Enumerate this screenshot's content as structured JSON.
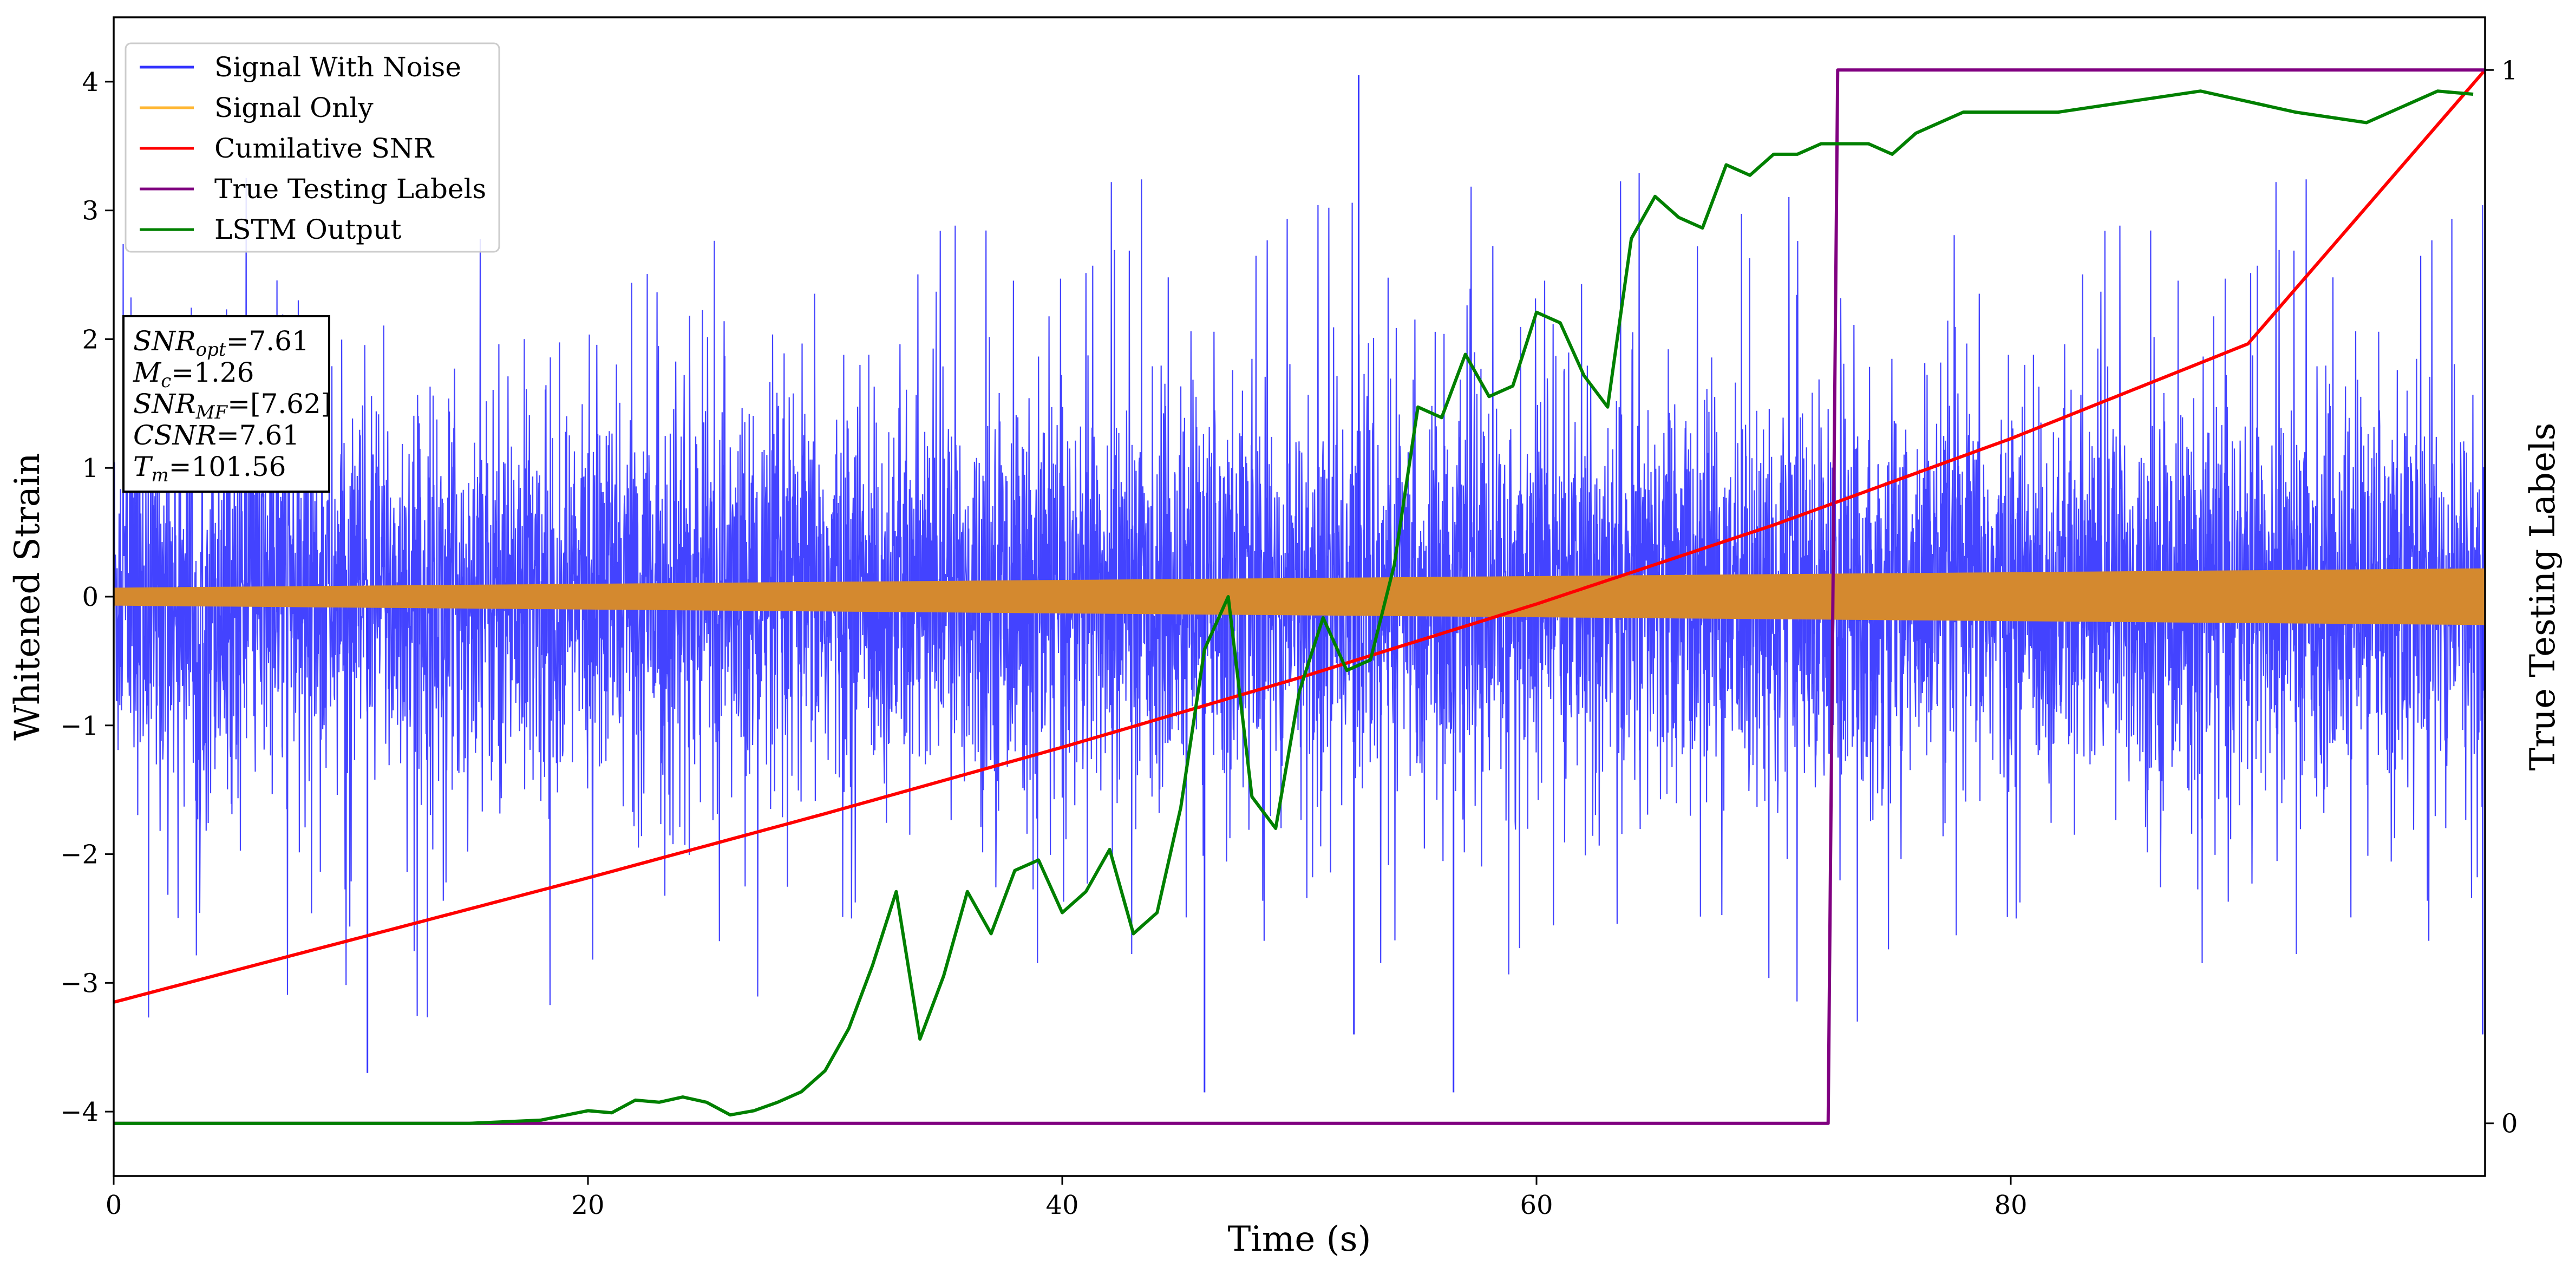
{
  "chart_data": {
    "type": "line",
    "xlabel": "Time (s)",
    "ylabel": "Whitened Strain",
    "y2label": "True Testing Labels",
    "xlim": [
      0,
      100
    ],
    "ylim": [
      -4.5,
      4.5
    ],
    "y2lim": [
      -0.05,
      1.05
    ],
    "x_ticks": [
      "0",
      "20",
      "40",
      "60",
      "80"
    ],
    "x_tick_values": [
      0,
      20,
      40,
      60,
      80
    ],
    "y_ticks": [
      "−4",
      "−3",
      "−2",
      "−1",
      "0",
      "1",
      "2",
      "3",
      "4"
    ],
    "y_tick_values": [
      -4,
      -3,
      -2,
      -1,
      0,
      1,
      2,
      3,
      4
    ],
    "y2_ticks": [
      "0",
      "1"
    ],
    "y2_tick_values": [
      0,
      1
    ],
    "grid": false,
    "legend_position": "top-left",
    "legend": [
      {
        "label": "Signal With Noise",
        "color": "#3333ff"
      },
      {
        "label": "Signal Only",
        "color": "#ffb733"
      },
      {
        "label": "Cumilative SNR",
        "color": "#ff0000"
      },
      {
        "label": "True Testing Labels",
        "color": "#800080"
      },
      {
        "label": "LSTM Output",
        "color": "#008000"
      }
    ],
    "info_box": [
      {
        "main": "SNR",
        "sub": "opt",
        "rest": "=7.61"
      },
      {
        "main": "M",
        "sub": "c",
        "rest": "=1.26"
      },
      {
        "main": "SNR",
        "sub": "MF",
        "rest": "=[7.62]"
      },
      {
        "main": "CSNR",
        "sub": "",
        "rest": "=7.61"
      },
      {
        "main": "T",
        "sub": "m",
        "rest": "=101.56"
      }
    ],
    "series": [
      {
        "name": "Signal With Noise",
        "axis": "left",
        "color": "#3333ff",
        "description": "noise band spanning roughly ±1.7 with spikes up to ±3.5",
        "spikes": [
          {
            "x": 52.5,
            "y": 4.05
          },
          {
            "x": 52.3,
            "y": -3.4
          },
          {
            "x": 46.0,
            "y": -3.85
          },
          {
            "x": 56.5,
            "y": -3.85
          },
          {
            "x": 10.7,
            "y": -3.7
          },
          {
            "x": 99.9,
            "y": -3.4
          }
        ]
      },
      {
        "name": "Signal Only",
        "axis": "left",
        "color": "#d4892f",
        "amplitude_start": 0.07,
        "amplitude_end": 0.22
      },
      {
        "name": "Cumilative SNR",
        "axis": "right",
        "color": "#ff0000",
        "x": [
          0,
          10,
          20,
          30,
          40,
          50,
          60,
          70,
          80,
          90,
          100
        ],
        "y": [
          0.115,
          0.174,
          0.233,
          0.294,
          0.357,
          0.423,
          0.493,
          0.568,
          0.65,
          0.74,
          1.0
        ]
      },
      {
        "name": "True Testing Labels",
        "axis": "right",
        "color": "#800080",
        "x": [
          0,
          72.3,
          72.7,
          100
        ],
        "y": [
          0,
          0,
          1,
          1
        ]
      },
      {
        "name": "LSTM Output",
        "axis": "right",
        "color": "#008000",
        "x": [
          0,
          15,
          18,
          20,
          21,
          22,
          23,
          24,
          25,
          26,
          27,
          28,
          29,
          30,
          31,
          32,
          33,
          34,
          35,
          36,
          37,
          38,
          39,
          40,
          41,
          42,
          43,
          44,
          45,
          46,
          47,
          48,
          49,
          50,
          51,
          52,
          53,
          54,
          55,
          56,
          57,
          58,
          59,
          60,
          61,
          62,
          63,
          64,
          65,
          66,
          67,
          68,
          69,
          70,
          71,
          72,
          73,
          74,
          75,
          76,
          77,
          78,
          79,
          80,
          82,
          85,
          88,
          90,
          92,
          95,
          98,
          99.5
        ],
        "y": [
          0.0,
          0.0,
          0.003,
          0.012,
          0.01,
          0.022,
          0.02,
          0.025,
          0.02,
          0.008,
          0.012,
          0.02,
          0.03,
          0.05,
          0.09,
          0.15,
          0.22,
          0.08,
          0.14,
          0.22,
          0.18,
          0.24,
          0.25,
          0.2,
          0.22,
          0.26,
          0.18,
          0.2,
          0.3,
          0.45,
          0.5,
          0.31,
          0.28,
          0.41,
          0.48,
          0.43,
          0.44,
          0.53,
          0.68,
          0.67,
          0.73,
          0.69,
          0.7,
          0.77,
          0.76,
          0.71,
          0.68,
          0.84,
          0.88,
          0.86,
          0.85,
          0.91,
          0.9,
          0.92,
          0.92,
          0.93,
          0.93,
          0.93,
          0.92,
          0.94,
          0.95,
          0.96,
          0.96,
          0.96,
          0.96,
          0.97,
          0.98,
          0.97,
          0.96,
          0.95,
          0.98,
          0.977
        ]
      }
    ]
  }
}
